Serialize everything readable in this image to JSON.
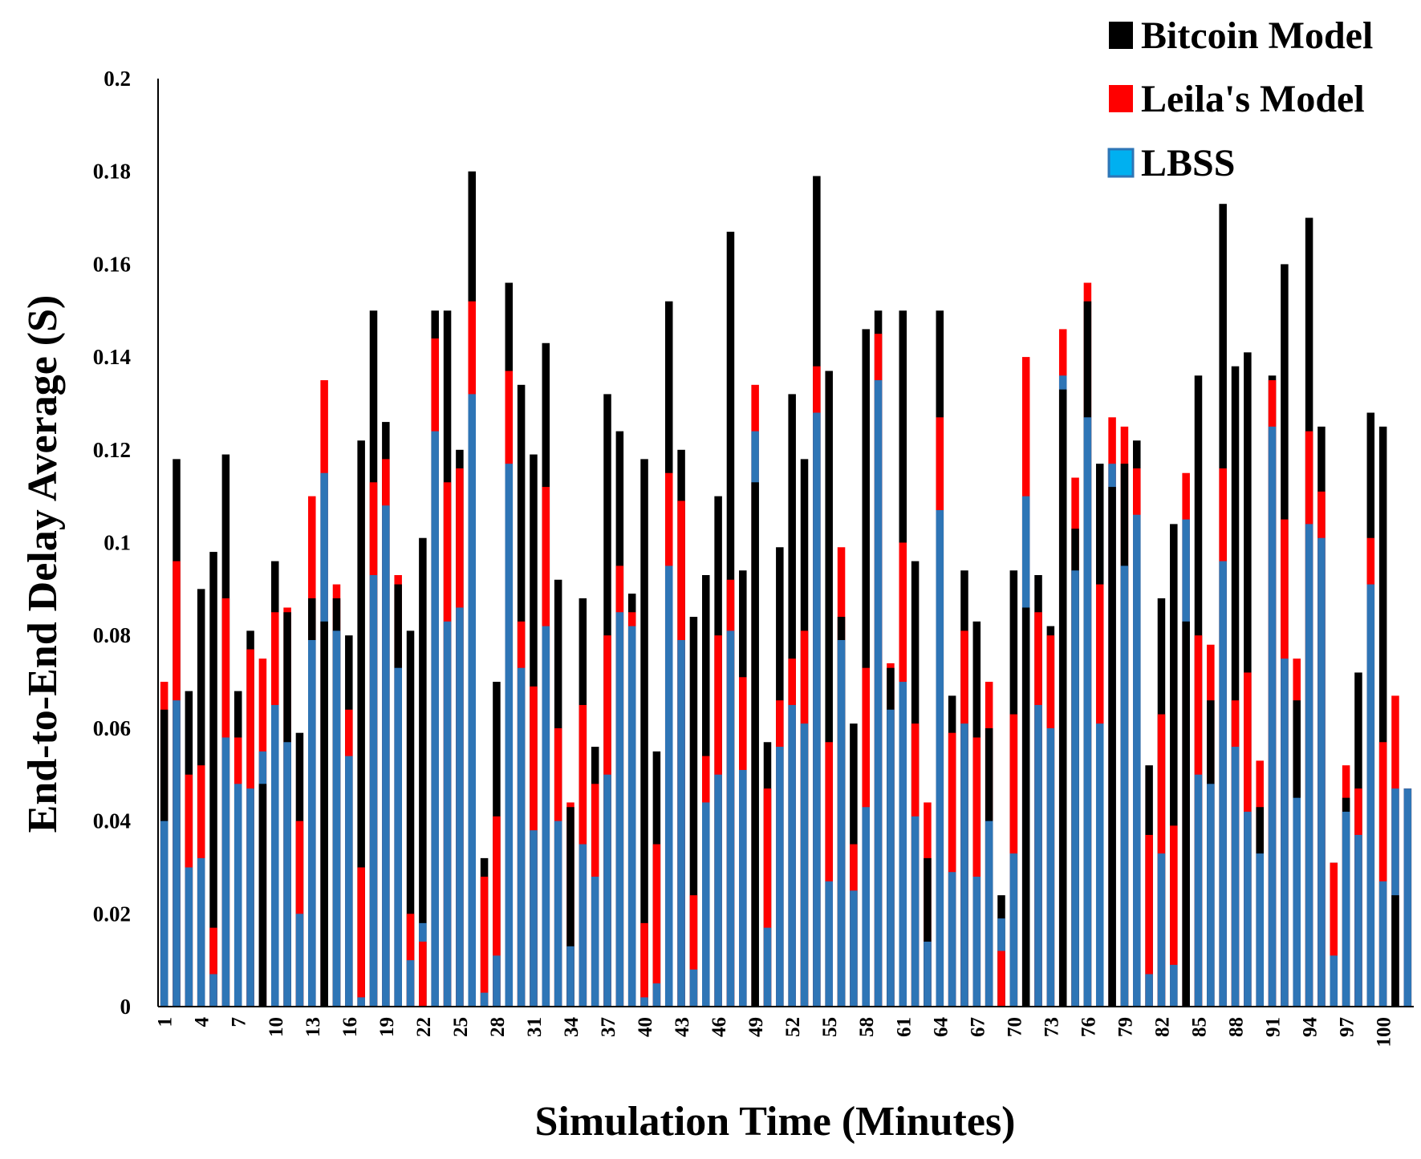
{
  "chart_data": {
    "type": "bar",
    "title": "",
    "xlabel": "Simulation Time (Minutes)",
    "ylabel": "End-to-End Delay Average (S)",
    "ylim": [
      0,
      0.2
    ],
    "y_ticks": [
      "0",
      "0.02",
      "0.04",
      "0.06",
      "0.08",
      "0.1",
      "0.12",
      "0.14",
      "0.16",
      "0.18",
      "0.2"
    ],
    "x_tick_labels": [
      "1",
      "4",
      "7",
      "10",
      "13",
      "16",
      "19",
      "22",
      "25",
      "28",
      "31",
      "34",
      "37",
      "40",
      "43",
      "46",
      "49",
      "52",
      "55",
      "58",
      "61",
      "64",
      "67",
      "70",
      "73",
      "76",
      "79",
      "82",
      "85",
      "88",
      "91",
      "94",
      "97",
      "100"
    ],
    "legend_position": "top-right",
    "categories": [
      1,
      2,
      3,
      4,
      5,
      6,
      7,
      8,
      9,
      10,
      11,
      12,
      13,
      14,
      15,
      16,
      17,
      18,
      19,
      20,
      21,
      22,
      23,
      24,
      25,
      26,
      27,
      28,
      29,
      30,
      31,
      32,
      33,
      34,
      35,
      36,
      37,
      38,
      39,
      40,
      41,
      42,
      43,
      44,
      45,
      46,
      47,
      48,
      49,
      50,
      51,
      52,
      53,
      54,
      55,
      56,
      57,
      58,
      59,
      60,
      61,
      62,
      63,
      64,
      65,
      66,
      67,
      68,
      69,
      70,
      71,
      72,
      73,
      74,
      75,
      76,
      77,
      78,
      79,
      80,
      81,
      82,
      83,
      84,
      85,
      86,
      87,
      88,
      89,
      90,
      91,
      92,
      93,
      94,
      95,
      96,
      97,
      98,
      99,
      100,
      101,
      102
    ],
    "series": [
      {
        "name": "Bitcoin Model",
        "color": "#000000",
        "values": [
          0.064,
          0.118,
          0.068,
          0.09,
          0.098,
          0.119,
          0.068,
          0.081,
          0.048,
          0.096,
          0.085,
          0.059,
          0.088,
          0.083,
          0.088,
          0.08,
          0.122,
          0.15,
          0.126,
          0.091,
          0.081,
          0.101,
          0.15,
          0.15,
          0.12,
          0.18,
          0.032,
          0.07,
          0.156,
          0.134,
          0.119,
          0.143,
          0.092,
          0.043,
          0.088,
          0.056,
          0.132,
          0.124,
          0.089,
          0.118,
          0.055,
          0.152,
          0.12,
          0.084,
          0.093,
          0.11,
          0.167,
          0.094,
          0.113,
          0.057,
          0.099,
          0.132,
          0.118,
          0.179,
          0.137,
          0.084,
          0.061,
          0.146,
          0.15,
          0.073,
          0.15,
          0.096,
          0.032,
          0.15,
          0.067,
          0.094,
          0.083,
          0.06,
          0.024,
          0.094,
          0.086,
          0.093,
          0.082,
          0.133,
          0.103,
          0.152,
          0.117,
          0.112,
          0.117,
          0.122,
          0.052,
          0.088,
          0.104,
          0.083,
          0.136,
          0.066,
          0.173,
          0.138,
          0.141,
          0.043,
          0.136,
          0.16,
          0.066,
          0.17,
          0.125,
          0.031,
          0.045,
          0.072,
          0.128,
          0.125,
          0.024,
          0.047
        ]
      },
      {
        "name": "Leila's Model",
        "color": "#ff0000",
        "values": [
          0.07,
          0.096,
          0.05,
          0.052,
          0.017,
          0.088,
          0.058,
          0.077,
          0.075,
          0.085,
          0.086,
          0.04,
          0.11,
          0.135,
          0.091,
          0.064,
          0.03,
          0.113,
          0.118,
          0.093,
          0.02,
          0.014,
          0.144,
          0.113,
          0.116,
          0.152,
          0.028,
          0.041,
          0.137,
          0.083,
          0.069,
          0.112,
          0.06,
          0.044,
          0.065,
          0.048,
          0.08,
          0.095,
          0.085,
          0.018,
          0.035,
          0.115,
          0.109,
          0.024,
          0.054,
          0.08,
          0.092,
          0.071,
          0.134,
          0.047,
          0.066,
          0.075,
          0.081,
          0.138,
          0.057,
          0.099,
          0.035,
          0.073,
          0.145,
          0.074,
          0.1,
          0.061,
          0.044,
          0.127,
          0.059,
          0.081,
          0.058,
          0.07,
          0.012,
          0.063,
          0.14,
          0.085,
          0.08,
          0.146,
          0.114,
          0.156,
          0.091,
          0.127,
          0.125,
          0.116,
          0.037,
          0.063,
          0.039,
          0.115,
          0.08,
          0.078,
          0.116,
          0.066,
          0.072,
          0.053,
          0.135,
          0.105,
          0.075,
          0.124,
          0.111,
          0.031,
          0.052,
          0.047,
          0.101,
          0.057,
          0.067,
          0.047
        ]
      },
      {
        "name": "LBSS",
        "color": "#2e75b6",
        "values": [
          0.04,
          0.066,
          0.03,
          0.032,
          0.007,
          0.058,
          0.048,
          0.047,
          0.055,
          0.065,
          0.057,
          0.02,
          0.079,
          0.115,
          0.081,
          0.054,
          0.002,
          0.093,
          0.108,
          0.073,
          0.01,
          0.018,
          0.124,
          0.083,
          0.086,
          0.132,
          0.003,
          0.011,
          0.117,
          0.073,
          0.038,
          0.082,
          0.04,
          0.013,
          0.035,
          0.028,
          0.05,
          0.085,
          0.082,
          0.002,
          0.005,
          0.095,
          0.079,
          0.008,
          0.044,
          0.05,
          0.081,
          0.051,
          0.124,
          0.017,
          0.056,
          0.065,
          0.061,
          0.128,
          0.027,
          0.079,
          0.025,
          0.043,
          0.135,
          0.064,
          0.07,
          0.041,
          0.014,
          0.107,
          0.029,
          0.061,
          0.028,
          0.04,
          0.019,
          0.033,
          0.11,
          0.065,
          0.06,
          0.136,
          0.094,
          0.127,
          0.061,
          0.117,
          0.095,
          0.106,
          0.007,
          0.033,
          0.009,
          0.105,
          0.05,
          0.048,
          0.096,
          0.056,
          0.042,
          0.033,
          0.125,
          0.075,
          0.045,
          0.104,
          0.101,
          0.011,
          0.042,
          0.037,
          0.091,
          0.027,
          0.047,
          0.047
        ]
      }
    ]
  }
}
